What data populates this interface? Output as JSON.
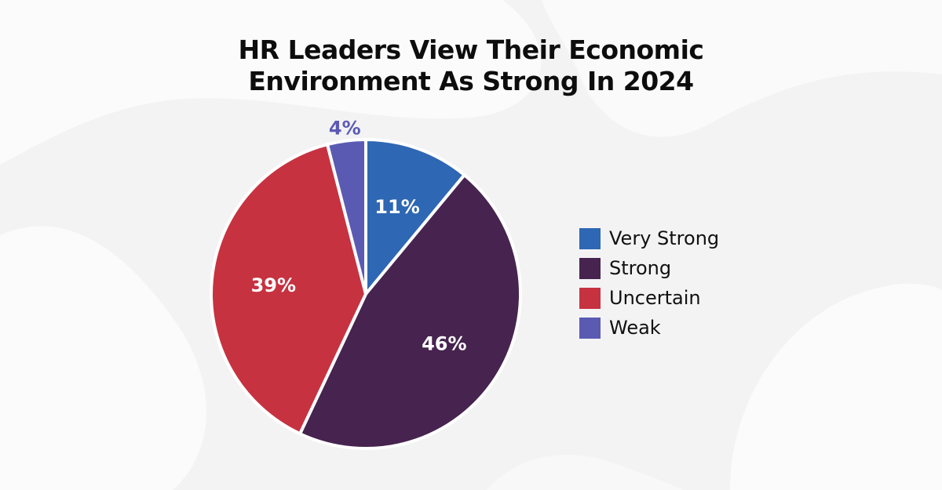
{
  "chart_data": {
    "type": "pie",
    "title_lines": [
      "HR Leaders View Their Economic",
      "Environment As Strong In 2024"
    ],
    "slices": [
      {
        "name": "Very Strong",
        "value": 11,
        "label": "11%",
        "color": "#2e67b3"
      },
      {
        "name": "Strong",
        "value": 46,
        "label": "46%",
        "color": "#47234f"
      },
      {
        "name": "Uncertain",
        "value": 39,
        "label": "39%",
        "color": "#c73240"
      },
      {
        "name": "Weak",
        "value": 4,
        "label": "4%",
        "color": "#5b5ab3"
      }
    ],
    "legend_position": "right",
    "start": "top",
    "direction": "clockwise"
  }
}
